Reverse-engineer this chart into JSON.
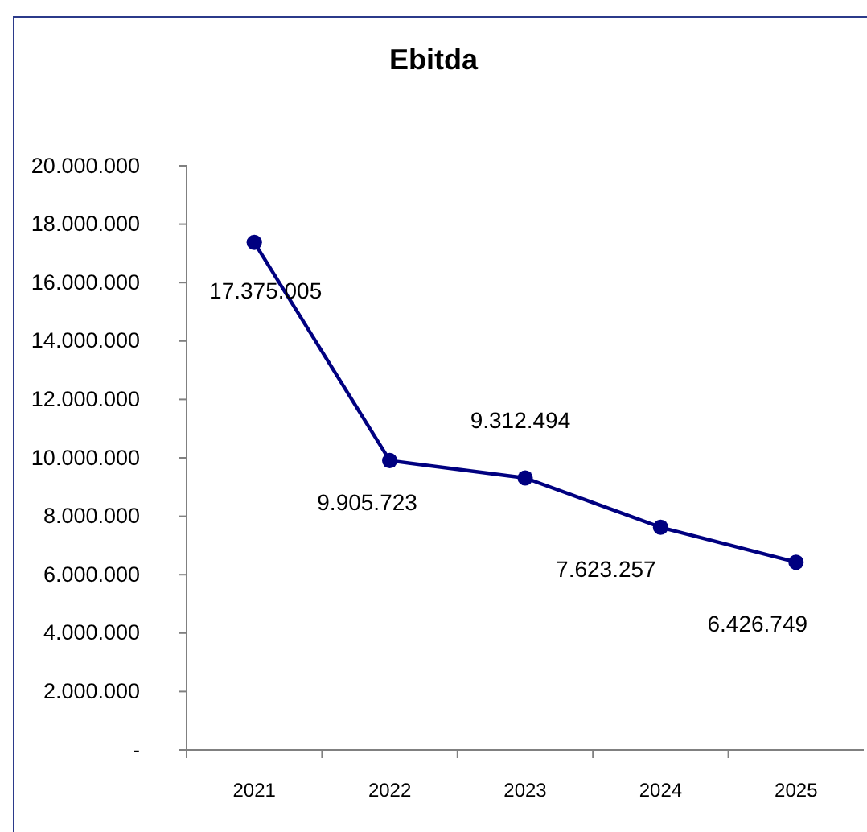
{
  "chart_data": {
    "type": "line",
    "title": "Ebitda",
    "categories": [
      "2021",
      "2022",
      "2023",
      "2024",
      "2025"
    ],
    "series": [
      {
        "color": "#000080",
        "values": [
          17375005,
          9905723,
          9312494,
          7623257,
          6426749
        ],
        "value_labels": [
          "17.375.005",
          "9.905.723",
          "9.312.494",
          "7.623.257",
          "6.426.749"
        ]
      }
    ],
    "ylim": [
      0,
      20000000
    ],
    "yticks": [
      {
        "value": 0,
        "label": "-"
      },
      {
        "value": 2000000,
        "label": "2.000.000"
      },
      {
        "value": 4000000,
        "label": "4.000.000"
      },
      {
        "value": 6000000,
        "label": "6.000.000"
      },
      {
        "value": 8000000,
        "label": "8.000.000"
      },
      {
        "value": 10000000,
        "label": "10.000.000"
      },
      {
        "value": 12000000,
        "label": "12.000.000"
      },
      {
        "value": 14000000,
        "label": "14.000.000"
      },
      {
        "value": 16000000,
        "label": "16.000.000"
      },
      {
        "value": 18000000,
        "label": "18.000.000"
      },
      {
        "value": 20000000,
        "label": "20.000.000"
      }
    ],
    "marker": "circle",
    "line_style": "solid",
    "grid": false
  }
}
